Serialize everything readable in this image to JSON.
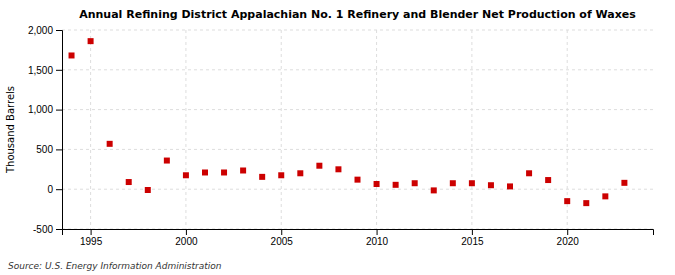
{
  "chart_data": {
    "type": "scatter",
    "title": "Annual Refining District Appalachian No. 1 Refinery and Blender Net Production of Waxes",
    "ylabel": "Thousand Barrels",
    "annotations": [
      "Source: U.S. Energy Information Administration"
    ],
    "x": [
      1994,
      1995,
      1996,
      1997,
      1998,
      1999,
      2000,
      2001,
      2002,
      2003,
      2004,
      2005,
      2006,
      2007,
      2008,
      2009,
      2010,
      2011,
      2012,
      2013,
      2014,
      2015,
      2016,
      2017,
      2018,
      2019,
      2020,
      2021,
      2022,
      2023
    ],
    "values": [
      1680,
      1860,
      570,
      90,
      -10,
      360,
      175,
      210,
      210,
      235,
      155,
      175,
      200,
      295,
      250,
      120,
      65,
      55,
      75,
      -15,
      75,
      75,
      50,
      35,
      200,
      115,
      -150,
      -175,
      -90,
      80
    ],
    "color": "#cc0000",
    "marker": "square",
    "xlim": [
      1993.5,
      2024.5
    ],
    "ylim": [
      -500,
      2000
    ],
    "xticks": [
      1995,
      2000,
      2005,
      2010,
      2015,
      2020
    ],
    "yticks": [
      -500,
      0,
      500,
      {
        "value": 1000,
        "label": "1,000"
      },
      {
        "value": 1500,
        "label": "1,500"
      },
      {
        "value": 2000,
        "label": "2,000"
      }
    ],
    "grid": true
  }
}
